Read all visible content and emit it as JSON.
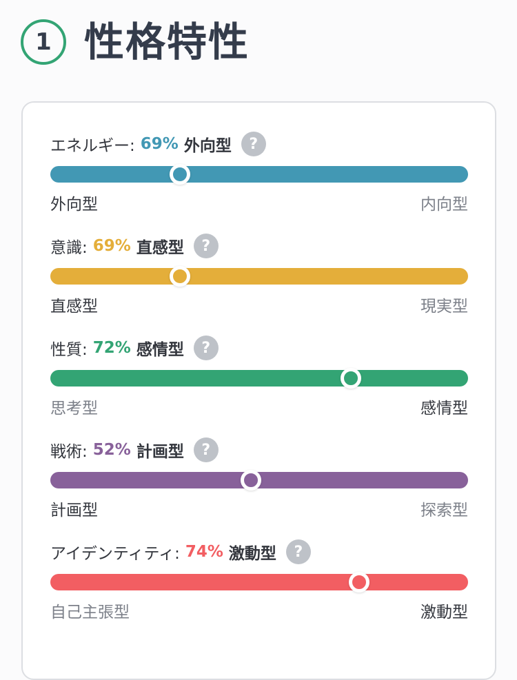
{
  "header": {
    "step_number": "1",
    "title": "性格特性"
  },
  "traits": [
    {
      "label": "エネルギー:",
      "percent": "69%",
      "value": 0.69,
      "type": "外向型",
      "color": "#4298b4",
      "left_label": "外向型",
      "right_label": "内向型",
      "active_side": "left",
      "help_icon": "question-icon"
    },
    {
      "label": "意識:",
      "percent": "69%",
      "value": 0.69,
      "type": "直感型",
      "color": "#e4ae3a",
      "left_label": "直感型",
      "right_label": "現実型",
      "active_side": "left",
      "help_icon": "question-icon"
    },
    {
      "label": "性質:",
      "percent": "72%",
      "value": 0.72,
      "type": "感情型",
      "color": "#33a474",
      "left_label": "思考型",
      "right_label": "感情型",
      "active_side": "right",
      "help_icon": "question-icon"
    },
    {
      "label": "戦術:",
      "percent": "52%",
      "value": 0.52,
      "type": "計画型",
      "color": "#88619a",
      "left_label": "計画型",
      "right_label": "探索型",
      "active_side": "left",
      "help_icon": "question-icon"
    },
    {
      "label": "アイデンティティ:",
      "percent": "74%",
      "value": 0.74,
      "type": "激動型",
      "color": "#f25e62",
      "left_label": "自己主張型",
      "right_label": "激動型",
      "active_side": "right",
      "help_icon": "question-icon"
    }
  ],
  "help_glyph": "?"
}
